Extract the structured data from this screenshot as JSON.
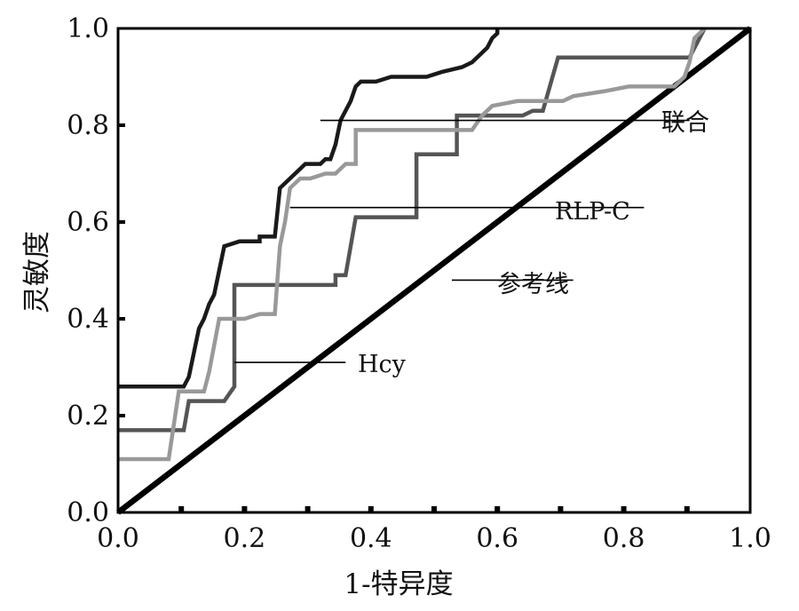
{
  "chart_data": {
    "type": "line",
    "title": "",
    "xlabel": "1-特异度",
    "ylabel": "灵敏度",
    "xlim": [
      0,
      1.25
    ],
    "ylim": [
      0,
      1.0
    ],
    "x_ticks": [
      {
        "value": 0.0,
        "label": "0.0"
      },
      {
        "value": 0.25,
        "label": "0.2"
      },
      {
        "value": 0.5,
        "label": "0.4"
      },
      {
        "value": 0.75,
        "label": "0.6"
      },
      {
        "value": 1.0,
        "label": "0.8"
      },
      {
        "value": 1.25,
        "label": "1.0"
      }
    ],
    "y_ticks": [
      {
        "value": 0.0,
        "label": "0.0"
      },
      {
        "value": 0.2,
        "label": "0.2"
      },
      {
        "value": 0.4,
        "label": "0.4"
      },
      {
        "value": 0.6,
        "label": "0.6"
      },
      {
        "value": 0.8,
        "label": "0.8"
      },
      {
        "value": 1.0,
        "label": "1.0"
      }
    ],
    "grid": false,
    "legend": "none",
    "series": [
      {
        "name": "参考线",
        "color": "#000000",
        "x": [
          0,
          1.25
        ],
        "y": [
          0,
          1.0
        ]
      },
      {
        "name": "Hcy",
        "color": "#555555",
        "x": [
          0,
          0.02,
          0.04,
          0.06,
          0.08,
          0.1,
          0.13,
          0.14,
          0.16,
          0.18,
          0.18,
          0.21,
          0.23,
          0.23,
          0.43,
          0.43,
          0.45,
          0.47,
          0.5,
          0.54,
          0.59,
          0.59,
          0.67,
          0.67,
          0.77,
          0.77,
          0.79,
          0.8,
          0.82,
          0.84,
          0.87,
          0.92,
          0.97,
          0.99,
          1.0,
          1.05,
          1.1,
          1.13,
          1.16
        ],
        "y": [
          0.17,
          0.17,
          0.17,
          0.17,
          0.17,
          0.17,
          0.17,
          0.23,
          0.23,
          0.23,
          0.23,
          0.23,
          0.26,
          0.47,
          0.47,
          0.49,
          0.49,
          0.61,
          0.61,
          0.61,
          0.61,
          0.74,
          0.74,
          0.82,
          0.82,
          0.82,
          0.82,
          0.82,
          0.83,
          0.83,
          0.94,
          0.94,
          0.94,
          0.94,
          0.94,
          0.94,
          0.94,
          0.94,
          1.0
        ]
      },
      {
        "name": "RLP-C",
        "color": "#999999",
        "x": [
          0,
          0.03,
          0.05,
          0.07,
          0.08,
          0.1,
          0.12,
          0.14,
          0.17,
          0.18,
          0.2,
          0.22,
          0.25,
          0.28,
          0.3,
          0.31,
          0.32,
          0.33,
          0.34,
          0.36,
          0.38,
          0.41,
          0.43,
          0.45,
          0.47,
          0.47,
          0.49,
          0.51,
          0.53,
          0.55,
          0.57,
          0.61,
          0.65,
          0.69,
          0.7,
          0.72,
          0.74,
          0.79,
          0.83,
          0.88,
          0.9,
          0.96,
          1.01,
          1.02,
          1.05,
          1.08,
          1.1,
          1.12,
          1.13,
          1.14,
          1.16
        ],
        "y": [
          0.11,
          0.11,
          0.11,
          0.11,
          0.11,
          0.11,
          0.25,
          0.25,
          0.25,
          0.29,
          0.4,
          0.4,
          0.4,
          0.41,
          0.41,
          0.41,
          0.55,
          0.6,
          0.67,
          0.69,
          0.69,
          0.7,
          0.7,
          0.72,
          0.72,
          0.79,
          0.79,
          0.79,
          0.79,
          0.79,
          0.79,
          0.79,
          0.79,
          0.79,
          0.79,
          0.82,
          0.84,
          0.85,
          0.85,
          0.85,
          0.86,
          0.87,
          0.88,
          0.88,
          0.88,
          0.88,
          0.88,
          0.9,
          0.93,
          0.98,
          1.0
        ]
      },
      {
        "name": "联合",
        "color": "#1a1a1a",
        "x": [
          0,
          0.05,
          0.09,
          0.11,
          0.12,
          0.13,
          0.14,
          0.16,
          0.17,
          0.18,
          0.19,
          0.21,
          0.24,
          0.26,
          0.28,
          0.28,
          0.3,
          0.31,
          0.32,
          0.36,
          0.37,
          0.38,
          0.4,
          0.41,
          0.42,
          0.43,
          0.44,
          0.46,
          0.47,
          0.48,
          0.51,
          0.54,
          0.57,
          0.61,
          0.64,
          0.68,
          0.7,
          0.72,
          0.73,
          0.74,
          0.75,
          0.75
        ],
        "y": [
          0.26,
          0.26,
          0.26,
          0.26,
          0.26,
          0.26,
          0.28,
          0.38,
          0.4,
          0.43,
          0.45,
          0.55,
          0.56,
          0.56,
          0.56,
          0.57,
          0.57,
          0.57,
          0.67,
          0.71,
          0.72,
          0.72,
          0.72,
          0.73,
          0.73,
          0.76,
          0.81,
          0.85,
          0.88,
          0.89,
          0.89,
          0.9,
          0.9,
          0.9,
          0.91,
          0.92,
          0.93,
          0.95,
          0.96,
          0.98,
          0.99,
          1.0
        ]
      }
    ],
    "annotations": [
      {
        "label": "联合",
        "series": "联合"
      },
      {
        "label": "RLP-C",
        "series": "RLP-C"
      },
      {
        "label": "参考线",
        "series": "参考线"
      },
      {
        "label": "Hcy",
        "series": "Hcy"
      }
    ]
  }
}
